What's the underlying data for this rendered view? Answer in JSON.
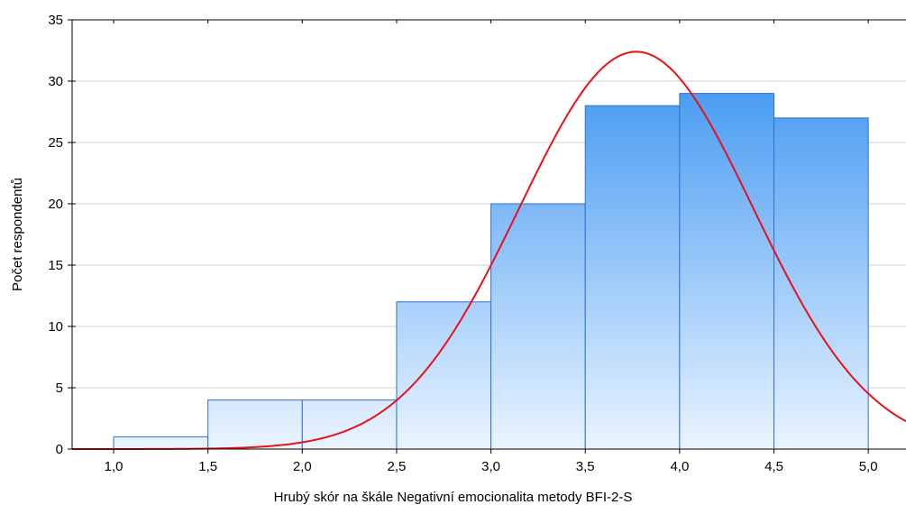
{
  "chart_data": {
    "type": "bar",
    "subtype": "histogram-with-normal-curve",
    "title": "",
    "xlabel": "Hrubý skór na škále Negativní emocionalita metody BFI-2-S",
    "ylabel": "Počet respondentů",
    "xlim": [
      0.78,
      5.2
    ],
    "ylim": [
      0,
      35
    ],
    "x_ticks": [
      1.0,
      1.5,
      2.0,
      2.5,
      3.0,
      3.5,
      4.0,
      4.5,
      5.0
    ],
    "x_tick_labels": [
      "1,0",
      "1,5",
      "2,0",
      "2,5",
      "3,0",
      "3,5",
      "4,0",
      "4,5",
      "5,0"
    ],
    "y_ticks": [
      0,
      5,
      10,
      15,
      20,
      25,
      30,
      35
    ],
    "y_tick_labels": [
      "0",
      "5",
      "10",
      "15",
      "20",
      "25",
      "30",
      "35"
    ],
    "grid": true,
    "bins": [
      {
        "x0": 1.0,
        "x1": 1.5,
        "count": 1
      },
      {
        "x0": 1.5,
        "x1": 2.0,
        "count": 4
      },
      {
        "x0": 2.0,
        "x1": 2.5,
        "count": 4
      },
      {
        "x0": 2.5,
        "x1": 3.0,
        "count": 12
      },
      {
        "x0": 3.0,
        "x1": 3.5,
        "count": 20
      },
      {
        "x0": 3.5,
        "x1": 4.0,
        "count": 28
      },
      {
        "x0": 4.0,
        "x1": 4.5,
        "count": 29
      },
      {
        "x0": 4.5,
        "x1": 5.0,
        "count": 27
      }
    ],
    "normal_curve": {
      "mean": 3.77,
      "sd": 0.62,
      "peak": 32.4
    },
    "colors": {
      "bar_top": "#2a8bf0",
      "bar_bottom": "#eaf4ff",
      "bar_stroke": "#2f6fd0",
      "curve": "#e8101a",
      "grid": "#cfcfcf",
      "axis": "#000000"
    }
  }
}
